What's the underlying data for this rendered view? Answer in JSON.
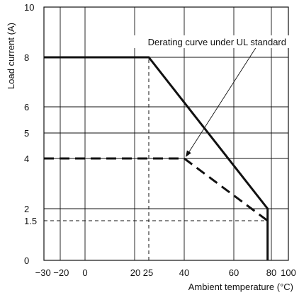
{
  "chart_data": {
    "type": "line",
    "xlabel": "Ambient temperature (°C)",
    "ylabel": "Load current (A)",
    "xlim": [
      -30,
      100
    ],
    "ylim": [
      0,
      10
    ],
    "grid": true,
    "x_ticks": [
      -30,
      -20,
      0,
      20,
      25,
      40,
      60,
      80,
      100
    ],
    "x_tick_labels": [
      "−30",
      "−20",
      "0",
      "20",
      "25",
      "40",
      "60",
      "80",
      "100"
    ],
    "x_tick_label_groups": [
      {
        "label": "−30 −20",
        "ticks": [
          -30,
          -20
        ]
      },
      {
        "label": "0",
        "ticks": [
          0
        ]
      },
      {
        "label": "20 25",
        "ticks": [
          20,
          25
        ]
      },
      {
        "label": "40",
        "ticks": [
          40
        ]
      },
      {
        "label": "60",
        "ticks": [
          60
        ]
      },
      {
        "label": "80",
        "ticks": [
          80
        ]
      },
      {
        "label": "100",
        "ticks": [
          100
        ]
      }
    ],
    "y_ticks": [
      0,
      1.5,
      2,
      4,
      5,
      6,
      8,
      10
    ],
    "y_tick_labels": [
      "0",
      "1.5",
      "2",
      "4",
      "5",
      "6",
      "8",
      "10"
    ],
    "series": [
      {
        "name": "",
        "style": "solid",
        "color": "#111111",
        "points": [
          [
            -30,
            8
          ],
          [
            25,
            8
          ],
          [
            78,
            2
          ],
          [
            78,
            0
          ]
        ]
      },
      {
        "name": "Derating curve under UL standard",
        "style": "dashed",
        "color": "#111111",
        "points": [
          [
            -30,
            4
          ],
          [
            40,
            4
          ],
          [
            78,
            1.5
          ]
        ]
      }
    ],
    "reference_lines": [
      {
        "style": "thin-dashed",
        "points": [
          [
            25,
            0
          ],
          [
            25,
            8
          ]
        ]
      },
      {
        "style": "thin-dashed",
        "points": [
          [
            -30,
            1.5
          ],
          [
            78,
            1.5
          ]
        ]
      }
    ],
    "annotations": [
      {
        "text": "Derating curve under UL standard",
        "points_to": [
          40,
          4
        ]
      }
    ]
  }
}
